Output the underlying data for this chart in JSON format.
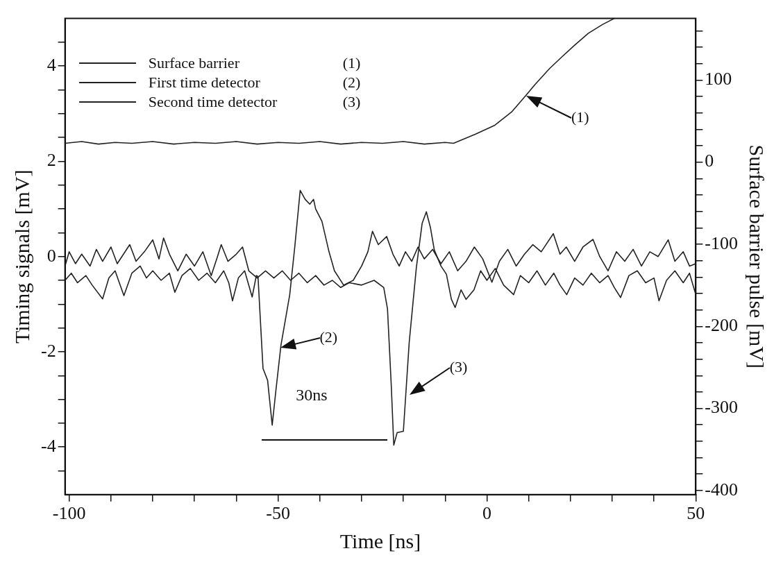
{
  "chart_data": {
    "type": "line",
    "xlabel": "Time [ns]",
    "ylabel": "Timing signals [mV]",
    "y2label": "Surface barrier pulse [mV]",
    "xlim": [
      -101,
      50
    ],
    "xticks": [
      -100,
      {
        "value": -90,
        "label": null
      },
      {
        "value": -80,
        "label": null
      },
      {
        "value": -70,
        "label": null
      },
      {
        "value": -60,
        "label": null
      },
      -50,
      {
        "value": -40,
        "label": null
      },
      {
        "value": -30,
        "label": null
      },
      {
        "value": -20,
        "label": null
      },
      {
        "value": -10,
        "label": null
      },
      0,
      {
        "value": 10,
        "label": null
      },
      {
        "value": 20,
        "label": null
      },
      {
        "value": 30,
        "label": null
      },
      {
        "value": 40,
        "label": null
      },
      50
    ],
    "ylim": [
      -5,
      5
    ],
    "yticks": [
      {
        "value": -4.5,
        "label": null
      },
      -4,
      {
        "value": -3.5,
        "label": null
      },
      {
        "value": -3,
        "label": null
      },
      {
        "value": -2.5,
        "label": null
      },
      -2,
      {
        "value": -1.5,
        "label": null
      },
      {
        "value": -1,
        "label": null
      },
      {
        "value": -0.5,
        "label": null
      },
      0,
      {
        "value": 0.5,
        "label": null
      },
      {
        "value": 1,
        "label": null
      },
      {
        "value": 1.5,
        "label": null
      },
      2,
      {
        "value": 2.5,
        "label": null
      },
      {
        "value": 3,
        "label": null
      },
      {
        "value": 3.5,
        "label": null
      },
      4,
      {
        "value": 4.5,
        "label": null
      }
    ],
    "y2lim": [
      -405,
      175
    ],
    "y2ticks": [
      -400,
      {
        "value": -380,
        "label": null
      },
      {
        "value": -360,
        "label": null
      },
      {
        "value": -340,
        "label": null
      },
      {
        "value": -320,
        "label": null
      },
      -300,
      {
        "value": -280,
        "label": null
      },
      {
        "value": -260,
        "label": null
      },
      {
        "value": -240,
        "label": null
      },
      {
        "value": -220,
        "label": null
      },
      -200,
      {
        "value": -180,
        "label": null
      },
      {
        "value": -160,
        "label": null
      },
      {
        "value": -140,
        "label": null
      },
      {
        "value": -120,
        "label": null
      },
      -100,
      {
        "value": -80,
        "label": null
      },
      {
        "value": -60,
        "label": null
      },
      {
        "value": -40,
        "label": null
      },
      {
        "value": -20,
        "label": null
      },
      0,
      {
        "value": 20,
        "label": null
      },
      {
        "value": 40,
        "label": null
      },
      {
        "value": 60,
        "label": null
      },
      {
        "value": 80,
        "label": null
      },
      100,
      {
        "value": 120,
        "label": null
      },
      {
        "value": 140,
        "label": null
      },
      {
        "value": 160,
        "label": null
      }
    ],
    "grid": false,
    "legend": "top left",
    "marker": "none",
    "line_style": "solid",
    "series": [
      {
        "name": "Surface barrier",
        "color": "#222222",
        "axis": "y2",
        "x": [
          -101,
          -97,
          -93,
          -89,
          -85,
          -80,
          -75,
          -70,
          -65,
          -60,
          -55,
          -50,
          -45,
          -40,
          -35,
          -30,
          -25,
          -20,
          -15,
          -10,
          -8,
          -2.8,
          1.9,
          5.9,
          9.3,
          11.6,
          15,
          17.9,
          20.9,
          24.3,
          27.8,
          30.5
        ],
        "values": [
          23,
          25,
          22,
          24,
          23,
          25,
          22,
          24,
          23,
          25,
          22,
          24,
          23,
          25,
          22,
          24,
          23,
          25,
          22,
          24,
          23,
          34,
          45,
          61,
          81,
          95,
          114,
          128,
          142,
          157,
          168,
          175
        ]
      },
      {
        "name": "First time detector",
        "color": "#222222",
        "x": [
          -101,
          -99.5,
          -98,
          -96,
          -94.5,
          -92,
          -90.5,
          -89,
          -88,
          -86.9,
          -85,
          -83,
          -81.5,
          -80,
          -78,
          -76,
          -74.7,
          -73,
          -71,
          -69,
          -67,
          -65,
          -63,
          -61.8,
          -60.9,
          -59.5,
          -58,
          -56.2,
          -55.2,
          -54.8,
          -53.6,
          -52.5,
          -51.4,
          -50.5,
          -49.3,
          -47.2,
          -46,
          -44.7,
          -43.5,
          -42.4,
          -41.5,
          -41,
          -39.5,
          -37.8,
          -36.5,
          -34.3,
          -32,
          -30,
          -28.5,
          -27.4,
          -26,
          -24,
          -22.5,
          -21,
          -19.5,
          -18,
          -16.5,
          -15,
          -13,
          -11,
          -9,
          -7,
          -5,
          -3,
          -1,
          1.2,
          3,
          5,
          7,
          9,
          11,
          13,
          15.9,
          17.5,
          19,
          21,
          23,
          25.4,
          27,
          29,
          31,
          33,
          35,
          37,
          39,
          41,
          43.4,
          45,
          47,
          48.5,
          50
        ],
        "values": [
          -0.5,
          -0.35,
          -0.55,
          -0.4,
          -0.6,
          -0.89,
          -0.45,
          -0.3,
          -0.55,
          -0.82,
          -0.35,
          -0.2,
          -0.45,
          -0.3,
          -0.5,
          -0.35,
          -0.75,
          -0.4,
          -0.25,
          -0.5,
          -0.35,
          -0.55,
          -0.3,
          -0.55,
          -0.93,
          -0.45,
          -0.3,
          -0.85,
          -0.4,
          -0.42,
          -2.35,
          -2.6,
          -3.54,
          -2.8,
          -1.86,
          -0.8,
          0.2,
          1.39,
          1.2,
          1.1,
          1.2,
          1.0,
          0.74,
          0.1,
          -0.3,
          -0.6,
          -0.5,
          -0.2,
          0.1,
          0.53,
          0.25,
          0.42,
          0.05,
          -0.2,
          0.1,
          -0.1,
          0.2,
          -0.05,
          0.15,
          -0.15,
          0.1,
          -0.3,
          -0.1,
          0.2,
          -0.05,
          -0.54,
          -0.1,
          0.15,
          -0.2,
          0.05,
          0.25,
          0.1,
          0.48,
          0.05,
          0.2,
          -0.1,
          0.2,
          0.36,
          0.0,
          -0.3,
          0.1,
          -0.1,
          0.15,
          -0.2,
          0.1,
          0.0,
          0.35,
          -0.1,
          0.1,
          -0.2,
          -0.15
        ]
      },
      {
        "name": "Second time detector",
        "color": "#222222",
        "x": [
          -101,
          -100,
          -98.5,
          -97,
          -95,
          -93.5,
          -92,
          -90,
          -88.5,
          -87,
          -85.5,
          -84,
          -82,
          -80,
          -78.5,
          -77.4,
          -76,
          -74,
          -72,
          -70,
          -68,
          -66,
          -64.5,
          -63.6,
          -62,
          -60,
          -58.5,
          -57,
          -55,
          -53,
          -51,
          -49,
          -47,
          -45,
          -43,
          -41,
          -39,
          -37,
          -35,
          -33,
          -30,
          -27,
          -24.7,
          -23.8,
          -22.9,
          -22.3,
          -21.5,
          -20,
          -18.6,
          -16.9,
          -15.5,
          -14.5,
          -13.5,
          -12.6,
          -11,
          -9.7,
          -8.5,
          -7.6,
          -6.2,
          -5,
          -3.1,
          -1.5,
          0,
          2,
          4,
          6.4,
          8,
          10,
          12,
          14,
          16,
          17.5,
          19.1,
          21,
          23,
          25,
          27,
          29,
          30.5,
          32,
          34,
          36,
          38,
          40,
          41.2,
          43,
          45,
          47,
          48.5,
          50
        ],
        "values": [
          -0.2,
          0.1,
          -0.15,
          0.05,
          -0.2,
          0.15,
          -0.1,
          0.2,
          -0.15,
          0.05,
          0.25,
          -0.1,
          0.1,
          0.35,
          -0.05,
          0.39,
          0.05,
          -0.3,
          0.05,
          -0.2,
          0.1,
          -0.4,
          0.0,
          0.25,
          -0.1,
          0.05,
          0.2,
          -0.3,
          -0.45,
          -0.3,
          -0.45,
          -0.3,
          -0.5,
          -0.35,
          -0.55,
          -0.4,
          -0.6,
          -0.5,
          -0.65,
          -0.55,
          -0.6,
          -0.5,
          -0.65,
          -1.1,
          -2.7,
          -3.96,
          -3.7,
          -3.67,
          -1.8,
          -0.24,
          0.7,
          0.94,
          0.6,
          0.14,
          -0.2,
          -0.37,
          -0.9,
          -1.07,
          -0.7,
          -0.9,
          -0.7,
          -0.3,
          -0.5,
          -0.25,
          -0.6,
          -0.8,
          -0.4,
          -0.55,
          -0.3,
          -0.6,
          -0.35,
          -0.6,
          -0.8,
          -0.45,
          -0.6,
          -0.35,
          -0.55,
          -0.4,
          -0.65,
          -0.86,
          -0.4,
          -0.3,
          -0.55,
          -0.45,
          -0.93,
          -0.5,
          -0.3,
          -0.55,
          -0.35,
          -0.8
        ]
      }
    ],
    "annotations": [
      "(1)",
      "(2)",
      "(3)",
      "30ns"
    ]
  }
}
